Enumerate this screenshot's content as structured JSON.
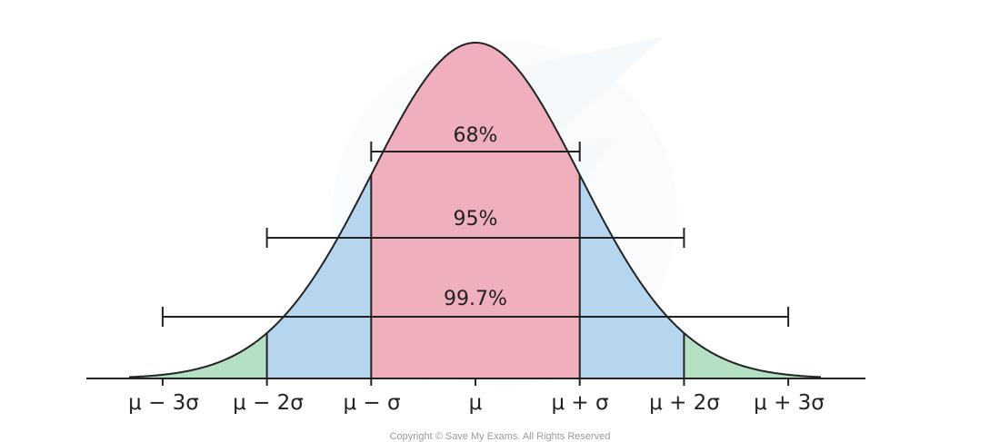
{
  "diagram": {
    "x_labels": [
      "μ − 3σ",
      "μ − 2σ",
      "μ − σ",
      "μ",
      "μ + σ",
      "μ + 2σ",
      "μ + 3σ"
    ],
    "intervals": [
      {
        "label": "68%",
        "sigma": 1
      },
      {
        "label": "95%",
        "sigma": 2
      },
      {
        "label": "99.7%",
        "sigma": 3
      }
    ],
    "colors": {
      "within_1_sigma": "#f0afbd",
      "within_2_sigma": "#b6d5ee",
      "within_3_sigma": "#b4e0c4",
      "outline": "#222222"
    },
    "copyright": "Copyright © Save My Exams. All Rights Reserved"
  }
}
